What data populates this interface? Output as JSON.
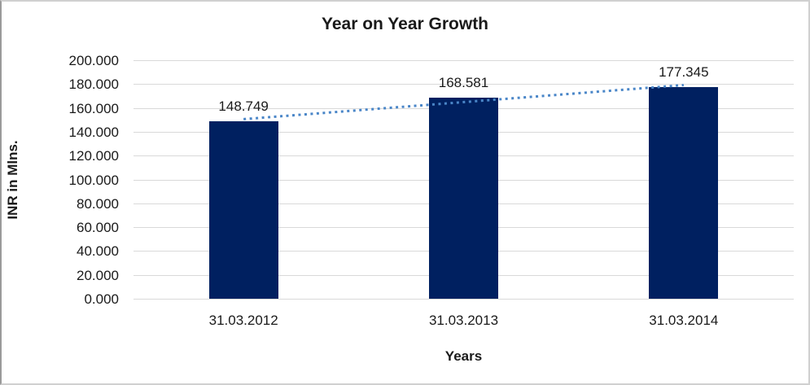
{
  "chart_data": {
    "type": "bar",
    "title": "Year on Year Growth",
    "xlabel": "Years",
    "ylabel": "INR in Mlns.",
    "categories": [
      "31.03.2012",
      "31.03.2013",
      "31.03.2014"
    ],
    "values": [
      148.749,
      168.581,
      177.345
    ],
    "value_labels": [
      "148.749",
      "168.581",
      "177.345"
    ],
    "ylim": [
      0,
      200
    ],
    "y_tick_step": 20,
    "y_tick_labels": [
      "0.000",
      "20.000",
      "40.000",
      "60.000",
      "80.000",
      "100.000",
      "120.000",
      "140.000",
      "160.000",
      "180.000",
      "200.000"
    ],
    "grid": "horizontal",
    "gridline_color": "#d9d9d9",
    "legend": "none",
    "bar_color": "#002060",
    "trendline": {
      "type": "linear",
      "style": "dotted",
      "color": "#4a86c8"
    }
  }
}
